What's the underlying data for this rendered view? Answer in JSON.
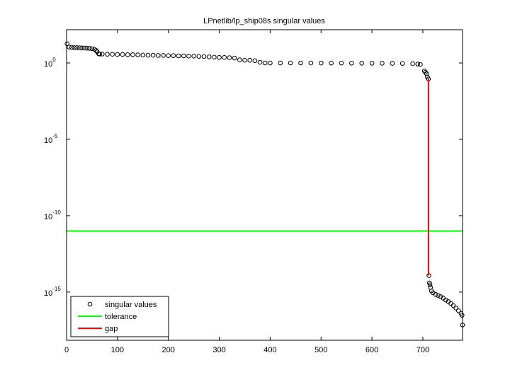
{
  "chart_data": {
    "type": "scatter",
    "title": "LPnetlib/lp_ship08s singular values",
    "ylog": true,
    "xlim": [
      0,
      778
    ],
    "xticks": [
      0,
      100,
      200,
      300,
      400,
      500,
      600,
      700
    ],
    "ylim": [
      7e-19,
      150
    ],
    "yticks": [
      {
        "value": 1,
        "label": "10",
        "exponent": "0"
      },
      {
        "value": 1e-05,
        "label": "10",
        "exponent": "-5"
      },
      {
        "value": 1e-10,
        "label": "10",
        "exponent": "-10"
      },
      {
        "value": 1e-15,
        "label": "10",
        "exponent": "-15"
      }
    ],
    "legend": "lower left",
    "series": [
      {
        "name": "singular values",
        "color": "#000000",
        "style": "markers",
        "x": [
          1,
          5,
          10,
          15,
          20,
          25,
          30,
          35,
          40,
          45,
          50,
          55,
          58,
          60,
          63,
          65,
          70,
          80,
          90,
          100,
          110,
          120,
          130,
          140,
          150,
          160,
          170,
          180,
          190,
          200,
          210,
          220,
          230,
          240,
          250,
          260,
          270,
          280,
          290,
          300,
          310,
          320,
          330,
          340,
          350,
          360,
          370,
          380,
          390,
          400,
          420,
          440,
          460,
          480,
          500,
          520,
          540,
          560,
          580,
          600,
          620,
          640,
          660,
          680,
          690,
          695,
          703,
          705,
          707,
          709,
          711,
          712,
          713,
          714,
          715,
          717,
          720,
          725,
          730,
          735,
          740,
          745,
          750,
          755,
          760,
          765,
          770,
          775,
          777,
          778
        ],
        "values": [
          18,
          11,
          10.5,
          10,
          10,
          9.8,
          9.6,
          9.4,
          9.2,
          9.0,
          8.6,
          7.8,
          6.5,
          5.5,
          4.0,
          3.8,
          3.8,
          3.7,
          3.7,
          3.6,
          3.6,
          3.5,
          3.5,
          3.4,
          3.3,
          3.2,
          3.2,
          3.1,
          3.1,
          3.0,
          3.0,
          2.9,
          2.9,
          2.8,
          2.8,
          2.7,
          2.6,
          2.5,
          2.4,
          2.3,
          2.3,
          2.2,
          2.1,
          1.6,
          1.5,
          1.5,
          1.4,
          1.1,
          1.0,
          1.0,
          1.0,
          1.0,
          1.0,
          0.99,
          0.99,
          0.98,
          0.98,
          0.97,
          0.96,
          0.96,
          0.95,
          0.94,
          0.93,
          0.9,
          0.85,
          0.8,
          0.3,
          0.25,
          0.2,
          0.12,
          0.09,
          1.2e-14,
          4e-15,
          3e-15,
          2e-15,
          1.2e-15,
          9e-16,
          7e-16,
          6e-16,
          5e-16,
          4e-16,
          3e-16,
          2.4e-16,
          1.8e-16,
          1.3e-16,
          9e-17,
          6e-17,
          4e-17,
          3e-17,
          7e-18
        ]
      },
      {
        "name": "tolerance",
        "color": "#00ff00",
        "style": "line",
        "x": [
          0,
          778
        ],
        "values": [
          1e-11,
          1e-11
        ]
      },
      {
        "name": "gap",
        "color": "#ff0000",
        "style": "line",
        "x": [
          711,
          711
        ],
        "values": [
          0.09,
          1.2e-14
        ]
      }
    ]
  }
}
